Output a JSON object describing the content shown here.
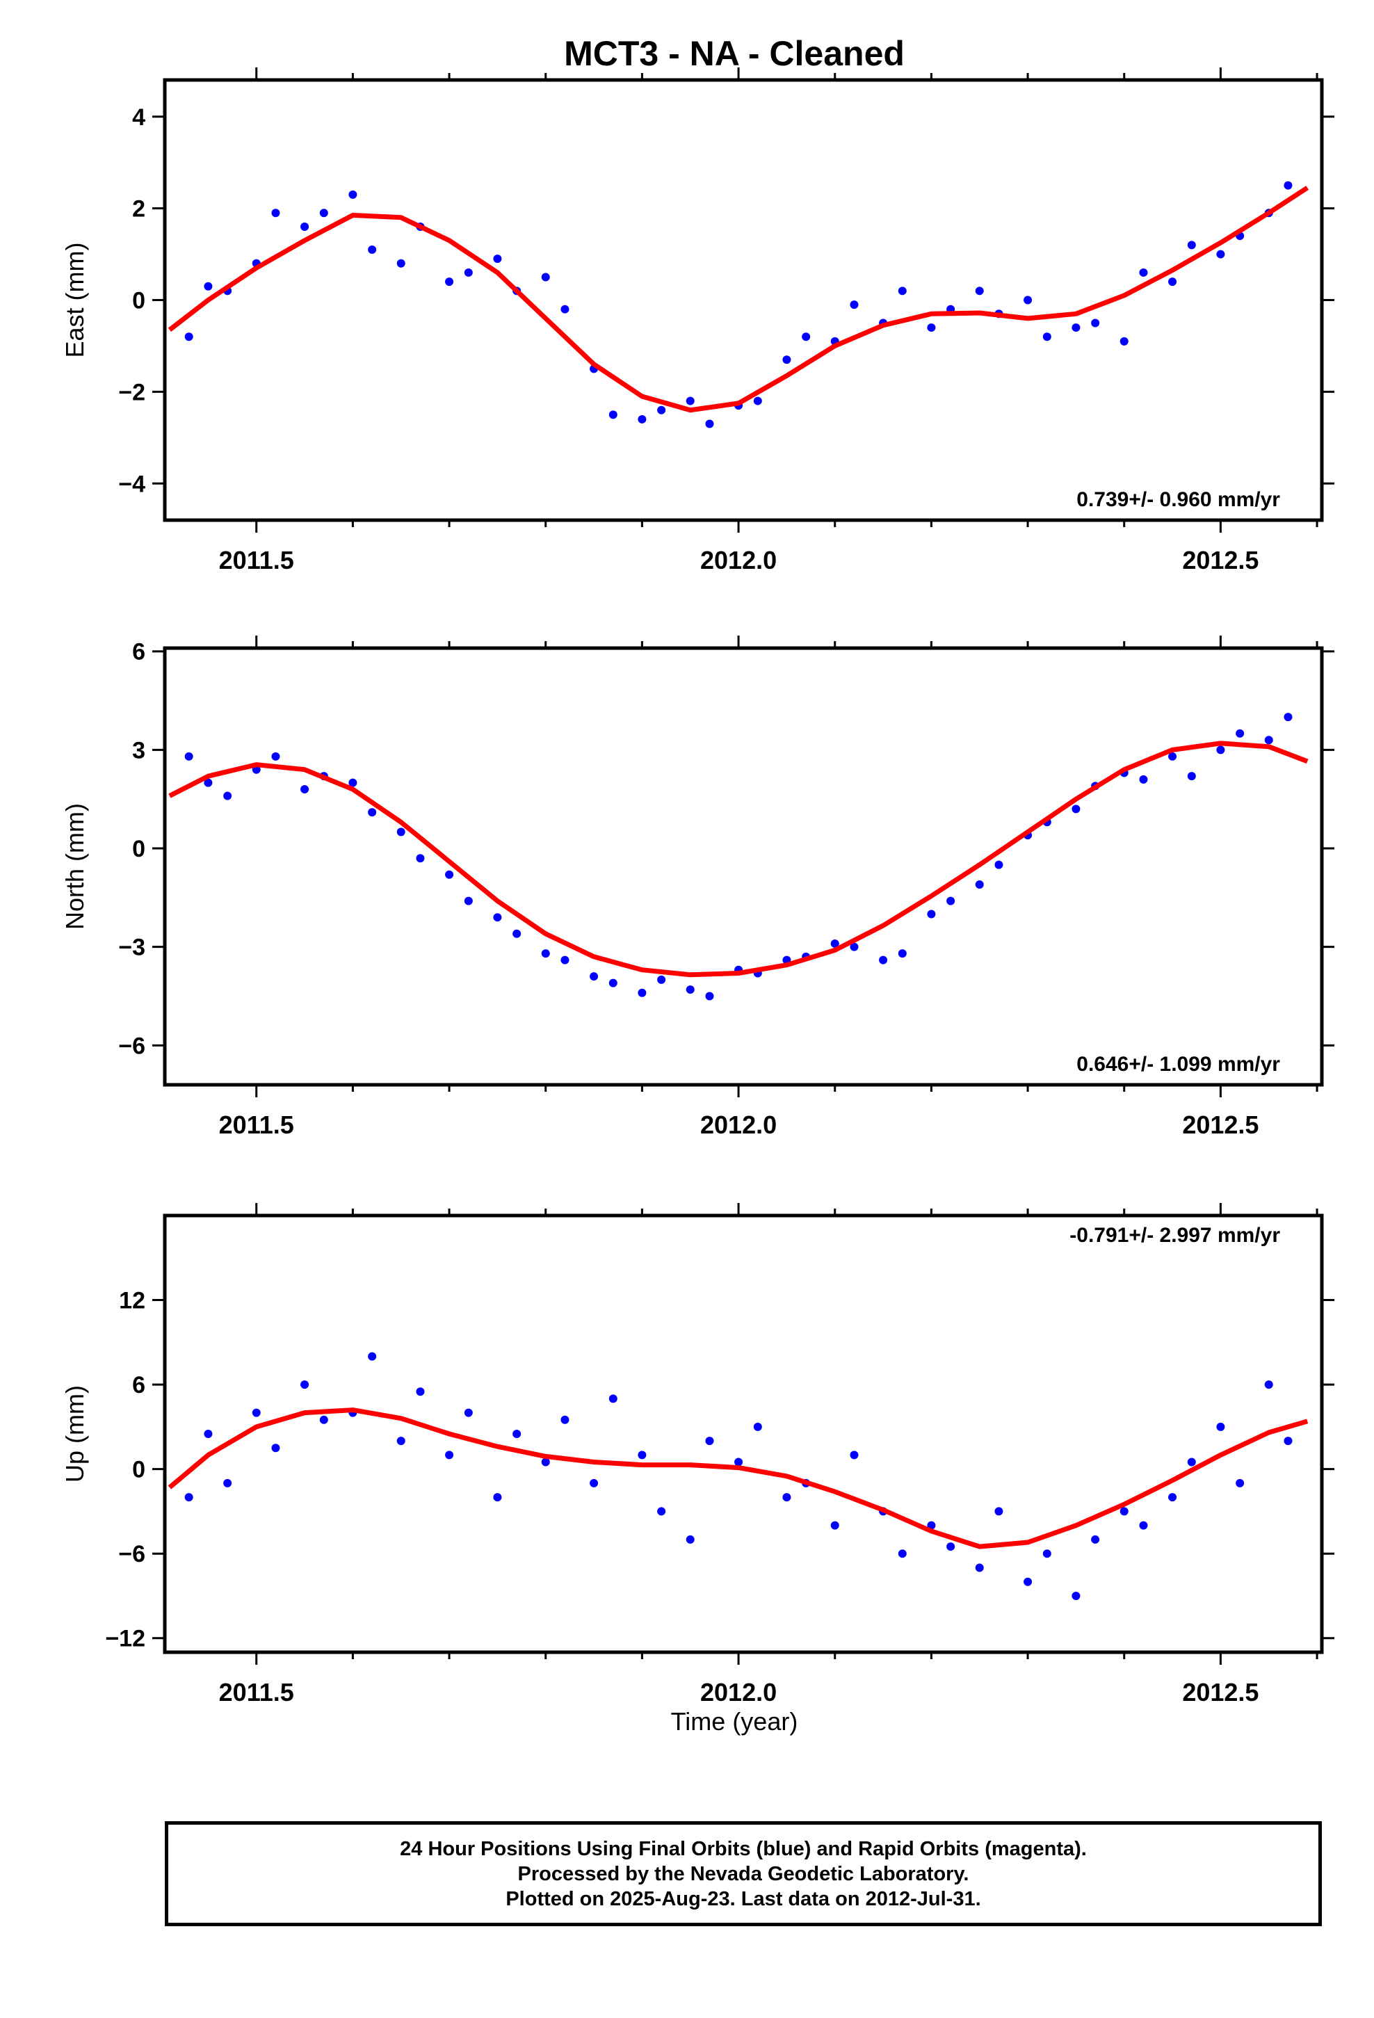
{
  "title": "MCT3  - NA - Cleaned",
  "xlabel": "Time (year)",
  "colors": {
    "points": "#0000ff",
    "fit": "#ff0000",
    "axis": "#000000"
  },
  "chart_data": [
    {
      "type": "scatter",
      "ylabel": "East (mm)",
      "xlim": [
        2011.405,
        2012.605
      ],
      "ylim": [
        -4.8,
        4.8
      ],
      "xticks": [
        "2011.5",
        "2012.0",
        "2012.5"
      ],
      "yticks": [
        "4",
        "2",
        "0",
        "−2",
        "−4"
      ],
      "rate_label": "0.739+/- 0.960 mm/yr",
      "rate_position": "bottom-right",
      "series": [
        {
          "type": "scatter",
          "x": [
            2011.43,
            2011.45,
            2011.47,
            2011.5,
            2011.52,
            2011.55,
            2011.57,
            2011.6,
            2011.62,
            2011.65,
            2011.67,
            2011.7,
            2011.72,
            2011.75,
            2011.77,
            2011.8,
            2011.82,
            2011.85,
            2011.87,
            2011.9,
            2011.92,
            2011.95,
            2011.97,
            2012.0,
            2012.02,
            2012.05,
            2012.07,
            2012.1,
            2012.12,
            2012.15,
            2012.17,
            2012.2,
            2012.22,
            2012.25,
            2012.27,
            2012.3,
            2012.32,
            2012.35,
            2012.37,
            2012.4,
            2012.42,
            2012.45,
            2012.47,
            2012.5,
            2012.52,
            2012.55,
            2012.57
          ],
          "y": [
            -0.8,
            0.3,
            0.2,
            0.8,
            1.9,
            1.6,
            1.9,
            2.3,
            1.1,
            0.8,
            1.6,
            0.4,
            0.6,
            0.9,
            0.2,
            0.5,
            -0.2,
            -1.5,
            -2.5,
            -2.6,
            -2.4,
            -2.2,
            -2.7,
            -2.3,
            -2.2,
            -1.3,
            -0.8,
            -0.9,
            -0.1,
            -0.5,
            0.2,
            -0.6,
            -0.2,
            0.2,
            -0.3,
            0.0,
            -0.8,
            -0.6,
            -0.5,
            -0.9,
            0.6,
            0.4,
            1.2,
            1.0,
            1.4,
            1.9,
            2.5
          ]
        },
        {
          "type": "line",
          "name": "fit",
          "x": [
            2011.41,
            2011.45,
            2011.5,
            2011.55,
            2011.6,
            2011.65,
            2011.7,
            2011.75,
            2011.8,
            2011.85,
            2011.9,
            2011.95,
            2012.0,
            2012.05,
            2012.1,
            2012.15,
            2012.2,
            2012.25,
            2012.3,
            2012.35,
            2012.4,
            2012.45,
            2012.5,
            2012.55,
            2012.59
          ],
          "y": [
            -0.65,
            0.0,
            0.7,
            1.3,
            1.85,
            1.8,
            1.3,
            0.6,
            -0.4,
            -1.4,
            -2.1,
            -2.4,
            -2.25,
            -1.65,
            -1.0,
            -0.55,
            -0.3,
            -0.28,
            -0.4,
            -0.3,
            0.1,
            0.65,
            1.25,
            1.9,
            2.45
          ]
        }
      ]
    },
    {
      "type": "scatter",
      "ylabel": "North (mm)",
      "xlim": [
        2011.405,
        2012.605
      ],
      "ylim": [
        -7.2,
        6.1
      ],
      "xticks": [
        "2011.5",
        "2012.0",
        "2012.5"
      ],
      "yticks": [
        "6",
        "3",
        "0",
        "−3",
        "−6"
      ],
      "rate_label": "0.646+/- 1.099 mm/yr",
      "rate_position": "bottom-right",
      "series": [
        {
          "type": "scatter",
          "x": [
            2011.43,
            2011.45,
            2011.47,
            2011.5,
            2011.52,
            2011.55,
            2011.57,
            2011.6,
            2011.62,
            2011.65,
            2011.67,
            2011.7,
            2011.72,
            2011.75,
            2011.77,
            2011.8,
            2011.82,
            2011.85,
            2011.87,
            2011.9,
            2011.92,
            2011.95,
            2011.97,
            2012.0,
            2012.02,
            2012.05,
            2012.07,
            2012.1,
            2012.12,
            2012.15,
            2012.17,
            2012.2,
            2012.22,
            2012.25,
            2012.27,
            2012.3,
            2012.32,
            2012.35,
            2012.37,
            2012.4,
            2012.42,
            2012.45,
            2012.47,
            2012.5,
            2012.52,
            2012.55,
            2012.57
          ],
          "y": [
            2.8,
            2.0,
            1.6,
            2.4,
            2.8,
            1.8,
            2.2,
            2.0,
            1.1,
            0.5,
            -0.3,
            -0.8,
            -1.6,
            -2.1,
            -2.6,
            -3.2,
            -3.4,
            -3.9,
            -4.1,
            -4.4,
            -4.0,
            -4.3,
            -4.5,
            -3.7,
            -3.8,
            -3.4,
            -3.3,
            -2.9,
            -3.0,
            -3.4,
            -3.2,
            -2.0,
            -1.6,
            -1.1,
            -0.5,
            0.4,
            0.8,
            1.2,
            1.9,
            2.3,
            2.1,
            2.8,
            2.2,
            3.0,
            3.5,
            3.3,
            4.0
          ]
        },
        {
          "type": "line",
          "name": "fit",
          "x": [
            2011.41,
            2011.45,
            2011.5,
            2011.55,
            2011.6,
            2011.65,
            2011.7,
            2011.75,
            2011.8,
            2011.85,
            2011.9,
            2011.95,
            2012.0,
            2012.05,
            2012.1,
            2012.15,
            2012.2,
            2012.25,
            2012.3,
            2012.35,
            2012.4,
            2012.45,
            2012.5,
            2012.55,
            2012.59
          ],
          "y": [
            1.6,
            2.2,
            2.55,
            2.4,
            1.8,
            0.8,
            -0.4,
            -1.6,
            -2.6,
            -3.3,
            -3.7,
            -3.85,
            -3.8,
            -3.55,
            -3.1,
            -2.35,
            -1.45,
            -0.5,
            0.5,
            1.5,
            2.4,
            3.0,
            3.2,
            3.1,
            2.65
          ]
        }
      ]
    },
    {
      "type": "scatter",
      "ylabel": "Up (mm)",
      "xlim": [
        2011.405,
        2012.605
      ],
      "ylim": [
        -13,
        18
      ],
      "xticks": [
        "2011.5",
        "2012.0",
        "2012.5"
      ],
      "yticks": [
        "12",
        "6",
        "0",
        "−6",
        "−12"
      ],
      "rate_label": "-0.791+/- 2.997 mm/yr",
      "rate_position": "top-right",
      "series": [
        {
          "type": "scatter",
          "x": [
            2011.43,
            2011.45,
            2011.47,
            2011.5,
            2011.52,
            2011.55,
            2011.57,
            2011.6,
            2011.62,
            2011.65,
            2011.67,
            2011.7,
            2011.72,
            2011.75,
            2011.77,
            2011.8,
            2011.82,
            2011.85,
            2011.87,
            2011.9,
            2011.92,
            2011.95,
            2011.97,
            2012.0,
            2012.02,
            2012.05,
            2012.07,
            2012.1,
            2012.12,
            2012.15,
            2012.17,
            2012.2,
            2012.22,
            2012.25,
            2012.27,
            2012.3,
            2012.32,
            2012.35,
            2012.37,
            2012.4,
            2012.42,
            2012.45,
            2012.47,
            2012.5,
            2012.52,
            2012.55,
            2012.57
          ],
          "y": [
            -2.0,
            2.5,
            -1.0,
            4.0,
            1.5,
            6.0,
            3.5,
            4.0,
            8.0,
            2.0,
            5.5,
            1.0,
            4.0,
            -2.0,
            2.5,
            0.5,
            3.5,
            -1.0,
            5.0,
            1.0,
            -3.0,
            -5.0,
            2.0,
            0.5,
            3.0,
            -2.0,
            -1.0,
            -4.0,
            1.0,
            -3.0,
            -6.0,
            -4.0,
            -5.5,
            -7.0,
            -3.0,
            -8.0,
            -6.0,
            -9.0,
            -5.0,
            -3.0,
            -4.0,
            -2.0,
            0.5,
            3.0,
            -1.0,
            6.0,
            2.0
          ]
        },
        {
          "type": "line",
          "name": "fit",
          "x": [
            2011.41,
            2011.45,
            2011.5,
            2011.55,
            2011.6,
            2011.65,
            2011.7,
            2011.75,
            2011.8,
            2011.85,
            2011.9,
            2011.95,
            2012.0,
            2012.05,
            2012.1,
            2012.15,
            2012.2,
            2012.25,
            2012.3,
            2012.35,
            2012.4,
            2012.45,
            2012.5,
            2012.55,
            2012.59
          ],
          "y": [
            -1.3,
            1.0,
            3.0,
            4.0,
            4.2,
            3.6,
            2.5,
            1.6,
            0.9,
            0.5,
            0.3,
            0.3,
            0.1,
            -0.5,
            -1.6,
            -2.9,
            -4.4,
            -5.5,
            -5.2,
            -4.0,
            -2.5,
            -0.8,
            1.0,
            2.6,
            3.4
          ]
        }
      ]
    }
  ],
  "footer": {
    "line1": "24 Hour Positions Using Final Orbits (blue) and Rapid Orbits (magenta).",
    "line2": "Processed by the Nevada Geodetic Laboratory.",
    "line3": "Plotted on 2025-Aug-23. Last data on 2012-Jul-31."
  }
}
